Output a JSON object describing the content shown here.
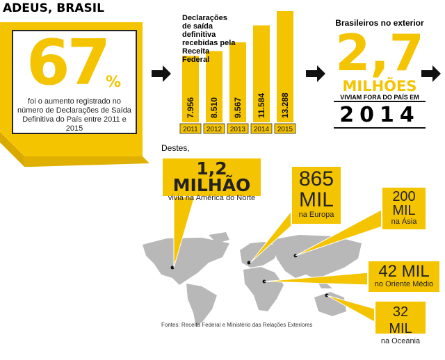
{
  "header": {
    "title": "ADEUS, BRASIL"
  },
  "stat_increase": {
    "number": "67",
    "unit": "%",
    "text": "foi o aumento registrado no número de Declarações de Saída Definitiva do País entre 2011 e 2015"
  },
  "chart_data": {
    "type": "bar",
    "title": "Declarações de saída definitiva recebidas pela Receita Federal",
    "categories": [
      "2011",
      "2012",
      "2013",
      "2014",
      "2015"
    ],
    "values": [
      7956,
      8510,
      9567,
      11584,
      13288
    ],
    "value_labels": [
      "7.956",
      "8.510",
      "9.567",
      "11.584",
      "13.288"
    ],
    "color": "#f5c400"
  },
  "stat_abroad": {
    "label": "Brasileiros no exterior",
    "number": "2,7",
    "unit": "MILHÕES",
    "text": "VIVIAM FORA DO PAÍS EM",
    "year": "2014"
  },
  "map": {
    "intro": "Destes,",
    "callouts": [
      {
        "number": "1,2 MILHÃO",
        "text": "vivia na América do Norte"
      },
      {
        "number": "865",
        "unit": "MIL",
        "text": "na Europa"
      },
      {
        "number": "200",
        "unit": "MIL",
        "text": "na Ásia"
      },
      {
        "number": "42 MIL",
        "text": "no Oriente Médio"
      },
      {
        "number": "32 MIL",
        "text": "na Oceania"
      }
    ]
  },
  "source": "Fontes: Receita Federal e Ministério das Relações Exteriores"
}
